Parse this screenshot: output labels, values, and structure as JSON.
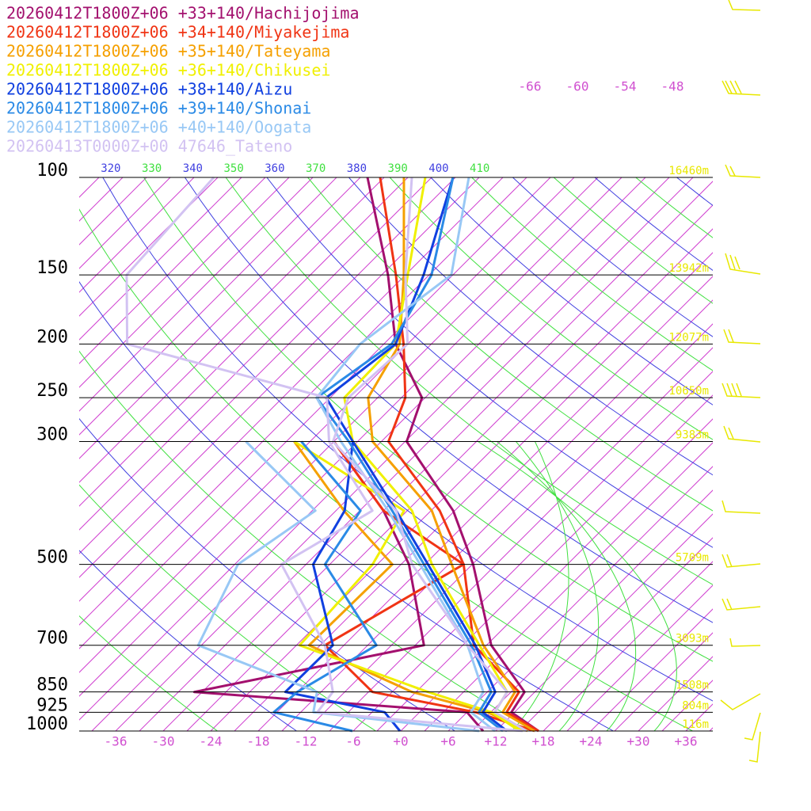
{
  "chart_data": {
    "type": "skewt",
    "levels": [
      1000,
      925,
      850,
      700,
      500,
      400,
      300,
      250,
      200,
      150,
      100
    ],
    "ylim": [
      1000,
      100
    ],
    "yticks": [
      100,
      150,
      200,
      250,
      300,
      500,
      700,
      850,
      925,
      1000
    ],
    "xlim": [
      -40.6,
      39.4
    ],
    "xticks": [
      -36,
      -30,
      -24,
      -18,
      -12,
      -6,
      {
        "value": 0,
        "label": "+0"
      },
      {
        "value": 6,
        "label": "+6"
      },
      {
        "value": 12,
        "label": "+12"
      },
      {
        "value": 18,
        "label": "+18"
      },
      {
        "value": 24,
        "label": "+24"
      },
      {
        "value": 30,
        "label": "+30"
      },
      {
        "value": 36,
        "label": "+36"
      }
    ],
    "isotherm_labels": [
      -66,
      -60,
      -54,
      -48
    ],
    "theta_labels": [
      320,
      330,
      340,
      350,
      360,
      370,
      380,
      390,
      400,
      410
    ],
    "height_labels": [
      {
        "pressure": 100,
        "label": "16460m"
      },
      {
        "pressure": 150,
        "label": "13942m"
      },
      {
        "pressure": 200,
        "label": "12077m"
      },
      {
        "pressure": 250,
        "label": "10650m"
      },
      {
        "pressure": 300,
        "label": "9383m"
      },
      {
        "pressure": 500,
        "label": "5709m"
      },
      {
        "pressure": 700,
        "label": "3093m"
      },
      {
        "pressure": 850,
        "label": "1508m"
      },
      {
        "pressure": 925,
        "label": "804m"
      },
      {
        "pressure": 1000,
        "label": "116m"
      }
    ],
    "series": [
      {
        "name": "20260412T1800Z+06 +33+140/Hachijojima",
        "color": "#a3106e",
        "temperature": [
          17.4,
          11.6,
          10.7,
          0.6,
          -11.9,
          -21.2,
          -35.8,
          -39.4,
          -49.5,
          -59.2,
          -74.1
        ],
        "dewpoint": [
          10.4,
          6,
          -31,
          -7.9,
          -20,
          -30,
          -45,
          null,
          null,
          null,
          null
        ]
      },
      {
        "name": "20260412T1800Z+06 +34+140/Miyakejima",
        "color": "#f03414",
        "temperature": [
          17.4,
          11,
          10,
          -1.6,
          -13.1,
          -22.9,
          -38.1,
          -41.5,
          -48.5,
          -58.2,
          -72.5
        ],
        "dewpoint": [
          16.9,
          7.1,
          -8.5,
          -20.4,
          -13.1,
          -30,
          -45,
          null,
          null,
          null,
          null
        ]
      },
      {
        "name": "20260412T1800Z+06 +35+140/Tateyama",
        "color": "#f5a000",
        "temperature": [
          16.9,
          10.5,
          9.5,
          -0.4,
          -14.6,
          -23.9,
          -40.1,
          -46.2,
          -49,
          -57.2,
          -69.5
        ],
        "dewpoint": [
          16,
          8.6,
          -3.5,
          -22.4,
          -22.1,
          -35,
          -50,
          null,
          null,
          null,
          null
        ]
      },
      {
        "name": "20260412T1800Z+06 +36+140/Chikusei",
        "color": "#f0f000",
        "temperature": [
          15.4,
          9.5,
          8.5,
          -0.9,
          -17.1,
          -26.4,
          -42.6,
          -49.2,
          -49.5,
          -56.7,
          -66.8
        ],
        "dewpoint": [
          15,
          9.1,
          -1.5,
          -23.6,
          -24.6,
          -27.4,
          -50,
          null,
          null,
          null,
          null
        ]
      },
      {
        "name": "20260412T1800Z+06 +38+140/Aizu",
        "color": "#1040e0",
        "temperature": [
          13.4,
          8,
          7,
          -1.4,
          -17.6,
          -28.4,
          -42.6,
          -51.5,
          -49.5,
          -54.7,
          -63.3
        ],
        "dewpoint": [
          -0.1,
          -4.4,
          -19.5,
          -19.4,
          -32.1,
          -34.9,
          -42.6,
          null,
          null,
          null,
          null
        ]
      },
      {
        "name": "20260412T1800Z+06 +39+140/Shonai",
        "color": "#2a8ae6",
        "temperature": [
          12.9,
          7.5,
          6.5,
          -1.9,
          -18.1,
          -28.9,
          -43.1,
          -52.7,
          -50,
          -53.7,
          -63.3
        ],
        "dewpoint": [
          -6.1,
          -18.4,
          -18,
          -13.9,
          -30.6,
          -32.9,
          -49.1,
          null,
          null,
          null,
          null
        ]
      },
      {
        "name": "20260412T1800Z+06 +40+140/Oogata",
        "color": "#98c8f5",
        "temperature": [
          11.9,
          6.5,
          5.5,
          -2.4,
          -18.6,
          -29.4,
          -44.1,
          -52.7,
          -54,
          -51.2,
          -61.3
        ],
        "dewpoint": [
          9.9,
          -13.4,
          -15.5,
          -36.4,
          -41.6,
          -38.6,
          -56.1,
          null,
          null,
          null,
          null
        ]
      },
      {
        "name": "20260413T0000Z+00 47646_Tateno",
        "color": "#d2c2f2",
        "temperature": [
          15.9,
          9.5,
          8.5,
          -2.4,
          -19.6,
          -28.4,
          -45.1,
          -48.7,
          -48,
          -57,
          -68.5
        ],
        "dewpoint": [
          15.4,
          -12.9,
          -13.5,
          -20.4,
          -36.1,
          -31.4,
          -45.6,
          -51.4,
          -83.4,
          -92.2,
          -93.5
        ]
      }
    ]
  }
}
